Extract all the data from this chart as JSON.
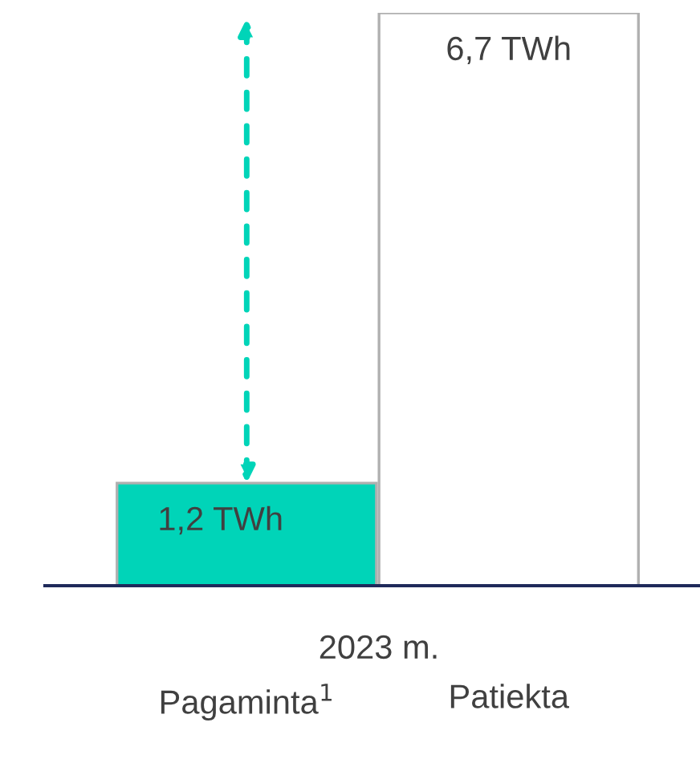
{
  "chart_data": {
    "type": "bar",
    "categories": [
      "Pagaminta$^{1}$",
      "Patiekta"
    ],
    "values": [
      1.2,
      6.7
    ],
    "value_labels": [
      "1,2 TWh",
      "6,7 TWh"
    ],
    "colors": [
      "#00d4b8",
      "#ffffff"
    ],
    "annotations": [
      "2023 m."
    ],
    "grid": false,
    "legend": false
  }
}
